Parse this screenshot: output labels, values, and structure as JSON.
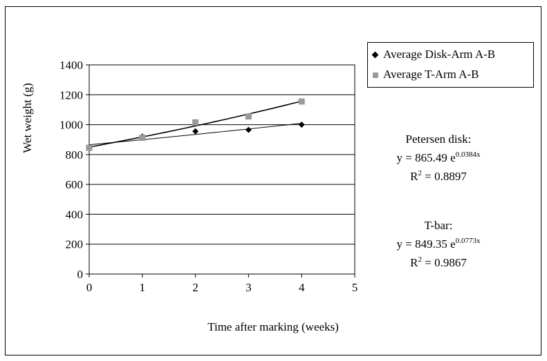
{
  "chart_data": {
    "type": "scatter",
    "xlabel": "Time after marking (weeks)",
    "ylabel": "Wet weight (g)",
    "xlim": [
      0,
      5
    ],
    "ylim": [
      0,
      1400
    ],
    "x_ticks": [
      "0",
      "1",
      "2",
      "3",
      "4",
      "5"
    ],
    "y_ticks": [
      "0",
      "200",
      "400",
      "600",
      "800",
      "1000",
      "1200",
      "1400"
    ],
    "grid": "horizontal",
    "legend_position": "top-right",
    "series": [
      {
        "name": "Average Disk-Arm A-B",
        "marker": "diamond",
        "color": "#000000",
        "x": [
          0,
          1,
          2,
          3,
          4
        ],
        "y": [
          850,
          920,
          955,
          965,
          1000
        ],
        "trendline": {
          "type": "exponential",
          "a": 865.49,
          "b": 0.0384
        }
      },
      {
        "name": "Average T-Arm A-B",
        "marker": "square",
        "color": "#9a9a9a",
        "x": [
          0,
          1,
          2,
          3,
          4
        ],
        "y": [
          845,
          912,
          1015,
          1055,
          1155
        ],
        "trendline": {
          "type": "exponential",
          "a": 849.35,
          "b": 0.0773
        }
      }
    ],
    "annotations": {
      "disk": {
        "title": "Petersen disk:",
        "eq_prefix": "y = 865.49 e",
        "eq_exp": "0.0384x",
        "r2_prefix": "R",
        "r2_sup": "2",
        "r2_value": " = 0.8897"
      },
      "tbar": {
        "title": "T-bar:",
        "eq_prefix": "y = 849.35 e",
        "eq_exp": "0.0773x",
        "r2_prefix": "R",
        "r2_sup": "2",
        "r2_value": " = 0.9867"
      }
    }
  }
}
